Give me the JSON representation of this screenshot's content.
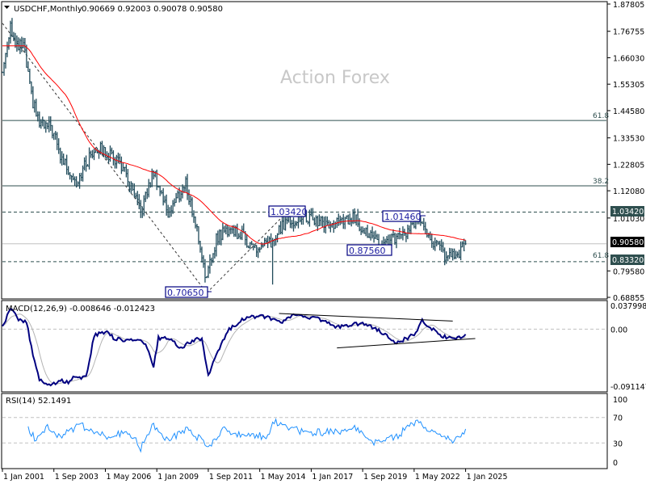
{
  "header": {
    "dropdown_icon": "triangle-down-icon",
    "symbol": "USDCHF,Monthly",
    "ohlc": "0.90669 0.92003 0.90078 0.90580"
  },
  "watermark": "Action Forex",
  "macd_label": "MACD(12,26,9) -0.008646 -0.012423",
  "rsi_label": "RSI(14) 52.1491",
  "colors": {
    "bars": "#1f4a5a",
    "ma": "#ff0000",
    "macd": "#000080",
    "signal": "#b4b4b4",
    "rsi": "#1e90ff",
    "level_box": "#000080",
    "axis_hl_dark": "#2f4f4f",
    "axis_hl_black": "#000000"
  },
  "chart_data": {
    "type": "ohlc",
    "symbol": "USDCHF",
    "timeframe": "Monthly",
    "x_tick_labels": [
      "1 Jan 2001",
      "1 Sep 2003",
      "1 May 2006",
      "1 Jan 2009",
      "1 Sep 2011",
      "1 May 2014",
      "1 Jan 2017",
      "1 Sep 2019",
      "1 May 2022",
      "1 Jan 2025"
    ],
    "y_tick_labels": [
      "1.87805",
      "1.76755",
      "1.66030",
      "1.55305",
      "1.44580",
      "1.33530",
      "1.22805",
      "1.12080",
      "1.01030",
      "0.79580",
      "0.68855"
    ],
    "ylim": [
      0.68855,
      1.87805
    ],
    "close_path": [
      [
        "2001-01",
        1.6
      ],
      [
        "2001-06",
        1.8
      ],
      [
        "2001-09",
        1.7
      ],
      [
        "2002-02",
        1.71
      ],
      [
        "2002-07",
        1.5
      ],
      [
        "2002-12",
        1.39
      ],
      [
        "2003-08",
        1.37
      ],
      [
        "2004-01",
        1.26
      ],
      [
        "2004-11",
        1.16
      ],
      [
        "2005-11",
        1.3
      ],
      [
        "2007-02",
        1.24
      ],
      [
        "2008-03",
        1.03
      ],
      [
        "2008-11",
        1.2
      ],
      [
        "2009-08",
        1.03
      ],
      [
        "2010-07",
        1.15
      ],
      [
        "2011-02",
        0.96
      ],
      [
        "2011-08",
        0.76
      ],
      [
        "2012-02",
        0.93
      ],
      [
        "2012-10",
        0.97
      ],
      [
        "2013-06",
        0.94
      ],
      [
        "2014-03",
        0.88
      ],
      [
        "2015-01",
        0.91
      ],
      [
        "2015-09",
        1.0
      ],
      [
        "2016-12",
        1.01
      ],
      [
        "2018-01",
        0.98
      ],
      [
        "2019-04",
        1.01
      ],
      [
        "2020-07",
        0.9
      ],
      [
        "2021-09",
        0.93
      ],
      [
        "2022-08",
        1.0
      ],
      [
        "2023-07",
        0.9
      ],
      [
        "2024-01",
        0.85
      ],
      [
        "2024-08",
        0.86
      ],
      [
        "2025-01",
        0.9058
      ]
    ],
    "last_bar": {
      "open": 0.90669,
      "high": 0.92003,
      "low": 0.90078,
      "close": 0.9058
    },
    "spike": {
      "date": "2015-01",
      "low": 0.7405
    },
    "moving_average": {
      "color": "red"
    },
    "level_labels": [
      {
        "text": "0.70650",
        "value": 0.7065
      },
      {
        "text": "1.03420",
        "value": 1.0342
      },
      {
        "text": "1.01460",
        "value": 1.0146
      },
      {
        "text": "0.87560",
        "value": 0.8756
      }
    ],
    "horizontal_lines": [
      {
        "value": 1.406,
        "style": "solid",
        "label": "61.8"
      },
      {
        "value": 1.141,
        "style": "solid",
        "label": "38.2"
      },
      {
        "value": 1.0342,
        "style": "dashed"
      },
      {
        "value": 0.9058,
        "style": "solid-grey"
      },
      {
        "value": 0.8332,
        "style": "dashed",
        "label": "61.8"
      }
    ],
    "axis_highlights": [
      {
        "text": "1.03420",
        "value": 1.0342,
        "bg": "#2f4f4f"
      },
      {
        "text": "0.90580",
        "value": 0.9058,
        "bg": "#000000"
      },
      {
        "text": "0.83320",
        "value": 0.8332,
        "bg": "#2f4f4f"
      }
    ],
    "trendlines": [
      {
        "from": [
          "2001-01",
          1.8
        ],
        "to": [
          "2011-08",
          0.7065
        ]
      },
      {
        "from": [
          "2011-08",
          0.7065
        ],
        "to": [
          "2015-10",
          1.0342
        ]
      }
    ],
    "macd": {
      "ylim": [
        -0.091147,
        0.037998
      ],
      "y_tick_labels": [
        "0.037998",
        "0.00",
        "-0.091147"
      ],
      "main_path": [
        [
          "2001-01",
          0.003
        ],
        [
          "2001-06",
          0.032
        ],
        [
          "2001-10",
          0.019
        ],
        [
          "2002-01",
          0.012
        ],
        [
          "2002-04",
          0.012
        ],
        [
          "2002-07",
          -0.029
        ],
        [
          "2002-12",
          -0.081
        ],
        [
          "2003-07",
          -0.09
        ],
        [
          "2004-01",
          -0.082
        ],
        [
          "2004-06",
          -0.085
        ],
        [
          "2004-10",
          -0.075
        ],
        [
          "2005-05",
          -0.078
        ],
        [
          "2005-10",
          -0.01
        ],
        [
          "2006-06",
          -0.003
        ],
        [
          "2006-11",
          -0.016
        ],
        [
          "2008-02",
          -0.018
        ],
        [
          "2008-07",
          -0.029
        ],
        [
          "2008-11",
          -0.061
        ],
        [
          "2009-02",
          -0.014
        ],
        [
          "2009-10",
          -0.014
        ],
        [
          "2010-03",
          -0.032
        ],
        [
          "2011-01",
          -0.016
        ],
        [
          "2011-05",
          -0.016
        ],
        [
          "2011-09",
          -0.074
        ],
        [
          "2012-02",
          -0.042
        ],
        [
          "2012-09",
          -0.003
        ],
        [
          "2013-06",
          0.016
        ],
        [
          "2014-06",
          0.022
        ],
        [
          "2015-06",
          0.01
        ],
        [
          "2016-02",
          0.022
        ],
        [
          "2016-07",
          0.022
        ],
        [
          "2017-06",
          0.016
        ],
        [
          "2018-05",
          0.003
        ],
        [
          "2019-09",
          0.01
        ],
        [
          "2020-08",
          -0.003
        ],
        [
          "2021-06",
          -0.023
        ],
        [
          "2022-06",
          -0.007
        ],
        [
          "2022-10",
          0.013
        ],
        [
          "2023-09",
          -0.01
        ],
        [
          "2024-06",
          -0.016
        ],
        [
          "2024-10",
          -0.014
        ],
        [
          "2025-01",
          -0.0086
        ]
      ],
      "signal_last": -0.012423,
      "trendlines": [
        {
          "from": [
            "2015-05",
            0.025
          ],
          "to": [
            "2024-05",
            0.013
          ]
        },
        {
          "from": [
            "2018-05",
            -0.03
          ],
          "to": [
            "2025-07",
            -0.015
          ]
        }
      ]
    },
    "rsi": {
      "ylim": [
        0,
        100
      ],
      "levels": [
        70,
        30
      ],
      "y_tick_labels": [
        "100",
        "70",
        "30",
        "0"
      ],
      "path": [
        [
          "2002-05",
          53
        ],
        [
          "2002-10",
          34
        ],
        [
          "2003-05",
          53
        ],
        [
          "2004-01",
          41
        ],
        [
          "2005-01",
          59
        ],
        [
          "2006-04",
          41
        ],
        [
          "2007-08",
          47
        ],
        [
          "2008-03",
          22
        ],
        [
          "2008-11",
          59
        ],
        [
          "2009-08",
          34
        ],
        [
          "2010-07",
          53
        ],
        [
          "2011-05",
          34
        ],
        [
          "2011-10",
          25
        ],
        [
          "2012-06",
          53
        ],
        [
          "2013-06",
          41
        ],
        [
          "2014-10",
          41
        ],
        [
          "2015-01",
          66
        ],
        [
          "2015-09",
          53
        ],
        [
          "2016-11",
          47
        ],
        [
          "2018-01",
          47
        ],
        [
          "2019-04",
          53
        ],
        [
          "2020-05",
          30
        ],
        [
          "2021-06",
          41
        ],
        [
          "2022-08",
          66
        ],
        [
          "2023-07",
          41
        ],
        [
          "2024-05",
          34
        ],
        [
          "2024-09",
          37
        ],
        [
          "2025-01",
          52
        ]
      ]
    }
  }
}
